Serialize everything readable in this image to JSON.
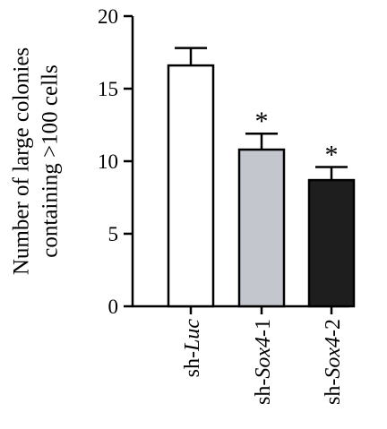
{
  "chart_data": {
    "type": "bar",
    "ylabel_lines": [
      "Number of large colonies",
      "containing >100 cells"
    ],
    "ylim": [
      0,
      20
    ],
    "yticks": [
      0,
      5,
      10,
      15,
      20
    ],
    "categories": [
      {
        "prefix": "sh-",
        "italic": "Luc",
        "suffix": ""
      },
      {
        "prefix": "sh-",
        "italic": "Sox4",
        "suffix": "-1"
      },
      {
        "prefix": "sh-",
        "italic": "Sox4",
        "suffix": "-2"
      }
    ],
    "values": [
      16.6,
      10.8,
      8.7
    ],
    "errors": [
      1.2,
      1.1,
      0.9
    ],
    "significance": [
      "",
      "*",
      "*"
    ],
    "bar_fill_colors": [
      "#ffffff",
      "#c3c6cd",
      "#1e1e1e"
    ],
    "bar_stroke_color": "#000000",
    "grid": false,
    "legend": "none"
  }
}
